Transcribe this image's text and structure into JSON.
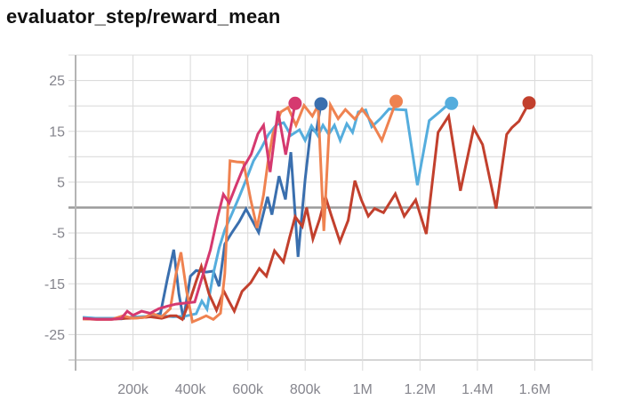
{
  "page": {
    "title": "evaluator_step/reward_mean"
  },
  "colors": {
    "background": "#ffffff",
    "grid": "#dcdcdc",
    "axis": "#b4b4b4",
    "border": "#c8c8c8",
    "zero_line": "#9b9b9b",
    "tick_label": "#85858d",
    "title_text": "#111111"
  },
  "chart_data": {
    "type": "line",
    "title": "evaluator_step/reward_mean",
    "xlabel": "",
    "ylabel": "",
    "xlim_k": [
      0,
      1800
    ],
    "ylim": [
      -30,
      30
    ],
    "grid": {
      "x_every_k": 200,
      "y_every": 5,
      "zero_line": true
    },
    "legend": "none",
    "x_ticks": [
      {
        "k": 200,
        "label": "200k"
      },
      {
        "k": 400,
        "label": "400k"
      },
      {
        "k": 600,
        "label": "600k"
      },
      {
        "k": 800,
        "label": "800k"
      },
      {
        "k": 1000,
        "label": "1M"
      },
      {
        "k": 1200,
        "label": "1.2M"
      },
      {
        "k": 1400,
        "label": "1.4M"
      },
      {
        "k": 1600,
        "label": "1.6M"
      }
    ],
    "y_ticks": [
      {
        "v": 25,
        "label": "25"
      },
      {
        "v": 15,
        "label": "15"
      },
      {
        "v": 5,
        "label": "5"
      },
      {
        "v": -5,
        "label": "-5"
      },
      {
        "v": -15,
        "label": "-15"
      },
      {
        "v": -25,
        "label": "-25"
      }
    ],
    "series": [
      {
        "name": "dark-blue-run",
        "color": "#3a6fae",
        "end_dot": true,
        "points_k_steps": [
          [
            25,
            -21.7
          ],
          [
            75,
            -21.8
          ],
          [
            125,
            -21.8
          ],
          [
            160,
            -21.9
          ],
          [
            200,
            -21.5
          ],
          [
            240,
            -21.6
          ],
          [
            270,
            -21.4
          ],
          [
            296,
            -20.8
          ],
          [
            320,
            -14
          ],
          [
            342,
            -8.3
          ],
          [
            360,
            -17
          ],
          [
            376,
            -22
          ],
          [
            400,
            -13.5
          ],
          [
            420,
            -12.4
          ],
          [
            455,
            -12.7
          ],
          [
            480,
            -12.5
          ],
          [
            500,
            -15.5
          ],
          [
            520,
            -7.2
          ],
          [
            545,
            -4.9
          ],
          [
            570,
            -2.8
          ],
          [
            594,
            -0.3
          ],
          [
            638,
            -4.9
          ],
          [
            669,
            2.1
          ],
          [
            684,
            -1.4
          ],
          [
            709,
            6.2
          ],
          [
            731,
            1.6
          ],
          [
            750,
            10.9
          ],
          [
            775,
            -9.7
          ],
          [
            800,
            5.6
          ],
          [
            820,
            15.6
          ],
          [
            838,
            14.8
          ],
          [
            855,
            20.4
          ]
        ]
      },
      {
        "name": "light-blue-run",
        "color": "#55addd",
        "end_dot": true,
        "points_k_steps": [
          [
            25,
            -21.6
          ],
          [
            75,
            -21.8
          ],
          [
            125,
            -21.8
          ],
          [
            175,
            -21.7
          ],
          [
            220,
            -21.5
          ],
          [
            260,
            -21.4
          ],
          [
            300,
            -21.3
          ],
          [
            340,
            -21.5
          ],
          [
            380,
            -21.4
          ],
          [
            420,
            -20.9
          ],
          [
            440,
            -18.4
          ],
          [
            458,
            -20
          ],
          [
            480,
            -13
          ],
          [
            500,
            -8
          ],
          [
            520,
            -4.4
          ],
          [
            545,
            -1.2
          ],
          [
            570,
            2.1
          ],
          [
            595,
            5.6
          ],
          [
            620,
            9.2
          ],
          [
            645,
            11.5
          ],
          [
            672,
            14.4
          ],
          [
            700,
            16.3
          ],
          [
            725,
            16.7
          ],
          [
            750,
            14.2
          ],
          [
            780,
            15.3
          ],
          [
            800,
            13.2
          ],
          [
            822,
            16.1
          ],
          [
            845,
            14.1
          ],
          [
            862,
            16.2
          ],
          [
            882,
            14.4
          ],
          [
            902,
            16.2
          ],
          [
            922,
            13.2
          ],
          [
            945,
            16.5
          ],
          [
            965,
            14.8
          ],
          [
            985,
            18.8
          ],
          [
            1011,
            19.2
          ],
          [
            1032,
            15.9
          ],
          [
            1062,
            17.5
          ],
          [
            1092,
            19.4
          ],
          [
            1125,
            19.3
          ],
          [
            1151,
            19.2
          ],
          [
            1191,
            4.4
          ],
          [
            1232,
            17.1
          ],
          [
            1268,
            18.8
          ],
          [
            1294,
            20.1
          ],
          [
            1310,
            20.5
          ]
        ]
      },
      {
        "name": "red-run",
        "color": "#c2402d",
        "end_dot": true,
        "points_k_steps": [
          [
            25,
            -21.9
          ],
          [
            75,
            -22
          ],
          [
            125,
            -22
          ],
          [
            175,
            -21.8
          ],
          [
            220,
            -21.7
          ],
          [
            260,
            -21.5
          ],
          [
            300,
            -21.8
          ],
          [
            330,
            -21.3
          ],
          [
            351,
            -21.3
          ],
          [
            372,
            -22
          ],
          [
            400,
            -18
          ],
          [
            420,
            -14.5
          ],
          [
            438,
            -11.6
          ],
          [
            465,
            -17
          ],
          [
            491,
            -20.2
          ],
          [
            516,
            -16.4
          ],
          [
            535,
            -18.5
          ],
          [
            553,
            -20.4
          ],
          [
            580,
            -16.5
          ],
          [
            610,
            -14.8
          ],
          [
            640,
            -12
          ],
          [
            665,
            -13.5
          ],
          [
            693,
            -8.5
          ],
          [
            724,
            -10.7
          ],
          [
            745,
            -6
          ],
          [
            765,
            -1.8
          ],
          [
            790,
            -3.7
          ],
          [
            805,
            0
          ],
          [
            827,
            -6.2
          ],
          [
            850,
            -2.3
          ],
          [
            871,
            2.1
          ],
          [
            890,
            -1.4
          ],
          [
            921,
            -6.7
          ],
          [
            950,
            -2.5
          ],
          [
            973,
            5.3
          ],
          [
            995,
            1.6
          ],
          [
            1020,
            -1.7
          ],
          [
            1042,
            -0.2
          ],
          [
            1073,
            -1
          ],
          [
            1114,
            2.7
          ],
          [
            1145,
            -1.7
          ],
          [
            1185,
            1.5
          ],
          [
            1222,
            -5.2
          ],
          [
            1263,
            14.8
          ],
          [
            1300,
            18
          ],
          [
            1341,
            3.3
          ],
          [
            1387,
            15.6
          ],
          [
            1418,
            12.4
          ],
          [
            1465,
            -0.2
          ],
          [
            1502,
            14.4
          ],
          [
            1520,
            15.7
          ],
          [
            1545,
            17
          ],
          [
            1580,
            20.6
          ]
        ]
      },
      {
        "name": "orange-run",
        "color": "#ef8250",
        "end_dot": true,
        "points_k_steps": [
          [
            25,
            -21.9
          ],
          [
            75,
            -22
          ],
          [
            125,
            -22
          ],
          [
            165,
            -21.3
          ],
          [
            200,
            -21.8
          ],
          [
            240,
            -21.6
          ],
          [
            268,
            -20.9
          ],
          [
            300,
            -21.5
          ],
          [
            330,
            -19.9
          ],
          [
            350,
            -13
          ],
          [
            367,
            -8.8
          ],
          [
            387,
            -16.5
          ],
          [
            407,
            -22.5
          ],
          [
            432,
            -21.9
          ],
          [
            455,
            -21.3
          ],
          [
            480,
            -22
          ],
          [
            505,
            -20.8
          ],
          [
            520,
            -13
          ],
          [
            538,
            9.2
          ],
          [
            562,
            9.0
          ],
          [
            585,
            8.9
          ],
          [
            610,
            1.6
          ],
          [
            632,
            -4
          ],
          [
            655,
            2.5
          ],
          [
            670,
            8.9
          ],
          [
            687,
            14.4
          ],
          [
            715,
            18.8
          ],
          [
            740,
            19.7
          ],
          [
            768,
            16.2
          ],
          [
            796,
            20.1
          ],
          [
            825,
            18
          ],
          [
            845,
            20.1
          ],
          [
            865,
            -4.6
          ],
          [
            888,
            20.2
          ],
          [
            915,
            17.5
          ],
          [
            940,
            19.3
          ],
          [
            973,
            17.4
          ],
          [
            998,
            19.4
          ],
          [
            1032,
            16.8
          ],
          [
            1067,
            13.2
          ],
          [
            1117,
            20.9
          ]
        ]
      },
      {
        "name": "pink-run",
        "color": "#d5396f",
        "end_dot": true,
        "points_k_steps": [
          [
            25,
            -21.8
          ],
          [
            75,
            -22
          ],
          [
            125,
            -22
          ],
          [
            160,
            -21.8
          ],
          [
            180,
            -20.4
          ],
          [
            200,
            -21.2
          ],
          [
            230,
            -20.4
          ],
          [
            260,
            -20.8
          ],
          [
            290,
            -19.9
          ],
          [
            320,
            -19.4
          ],
          [
            350,
            -19
          ],
          [
            380,
            -18.8
          ],
          [
            415,
            -18.6
          ],
          [
            445,
            -13
          ],
          [
            470,
            -8.3
          ],
          [
            495,
            -1.8
          ],
          [
            515,
            2.6
          ],
          [
            535,
            0.9
          ],
          [
            560,
            4.5
          ],
          [
            585,
            7.9
          ],
          [
            612,
            10.5
          ],
          [
            635,
            14.5
          ],
          [
            655,
            16.2
          ],
          [
            678,
            7
          ],
          [
            705,
            19
          ],
          [
            732,
            10.4
          ],
          [
            765,
            20.5
          ]
        ]
      }
    ]
  }
}
